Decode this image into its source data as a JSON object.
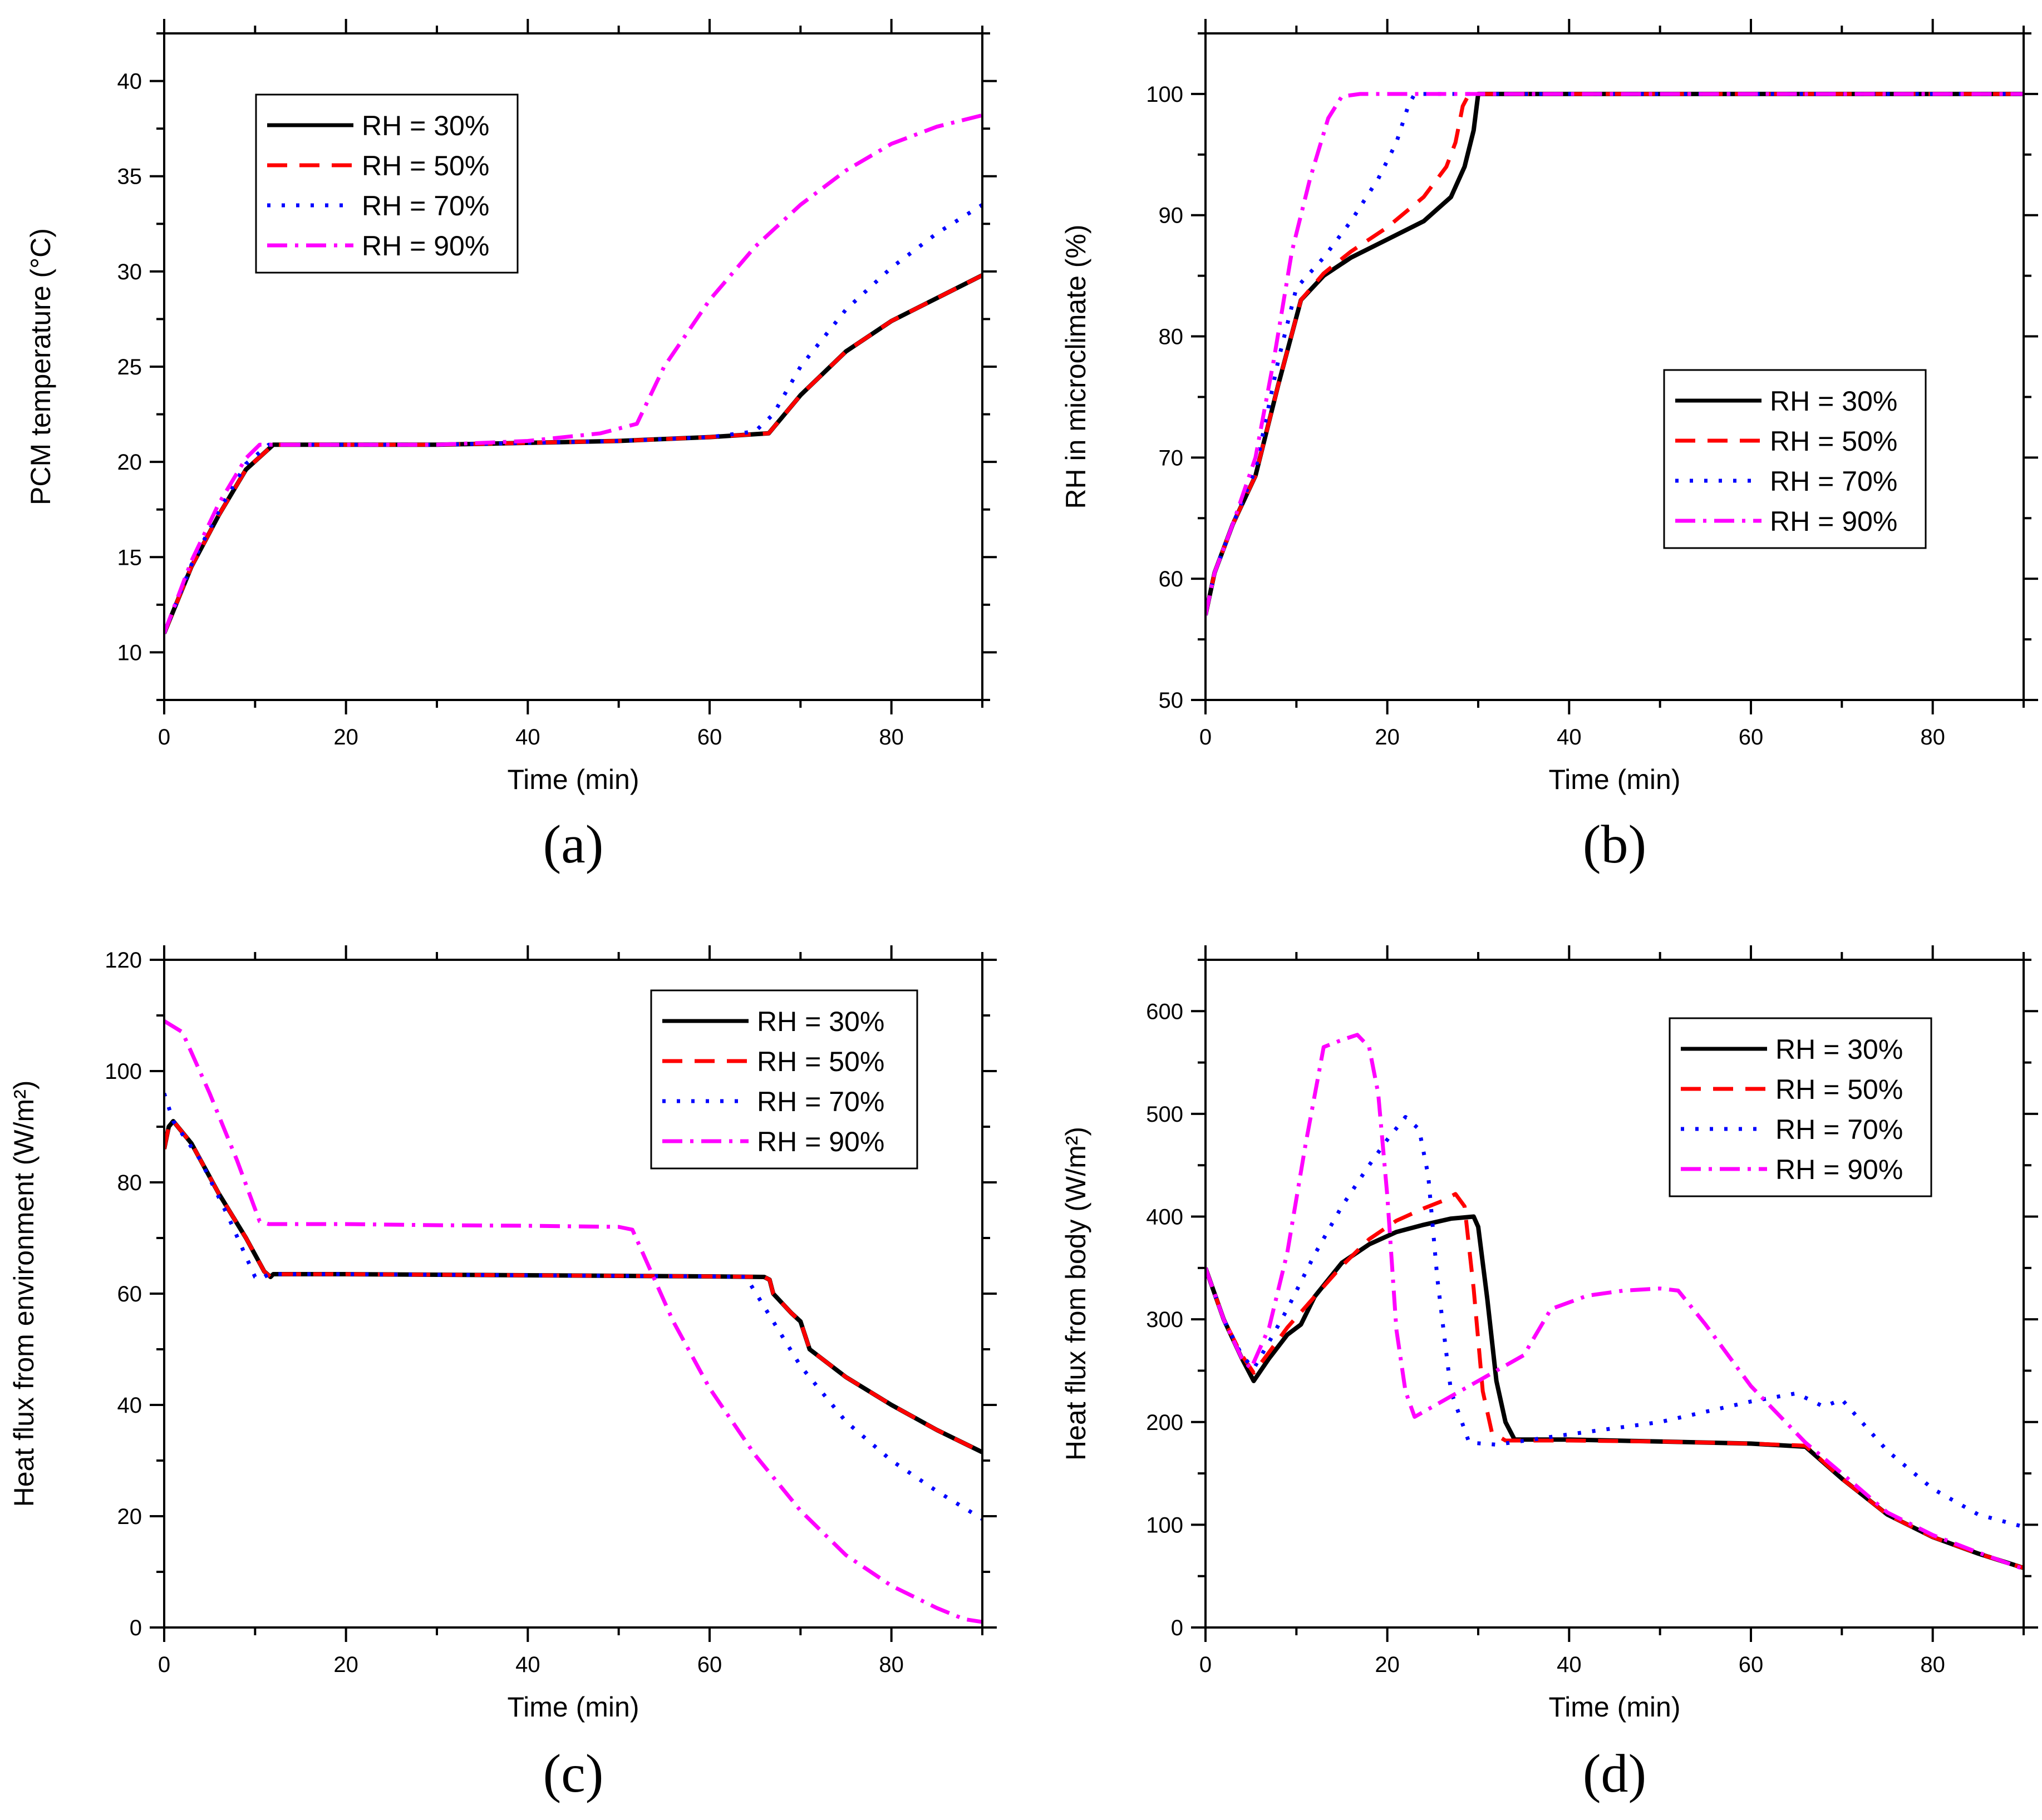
{
  "figure": {
    "series_style": {
      "RH = 30%": {
        "color": "#000000",
        "dash": "none"
      },
      "RH = 50%": {
        "color": "#ff0000",
        "dash": "36,22"
      },
      "RH = 70%": {
        "color": "#0000ff",
        "dash": "6,20"
      },
      "RH = 90%": {
        "color": "#ff00ff",
        "dash": "36,14,6,14"
      }
    }
  },
  "chart_data": [
    {
      "type": "line",
      "panel_label": "(a)",
      "xlabel": "Time (min)",
      "ylabel": "PCM temperature (°C)",
      "xlim": [
        0,
        90
      ],
      "ylim": [
        7.5,
        42.5
      ],
      "xticks": [
        0,
        20,
        40,
        60,
        80
      ],
      "yticks": [
        10,
        15,
        20,
        25,
        30,
        35,
        40
      ],
      "legend": {
        "position": "top-left",
        "entries": [
          "RH = 30%",
          "RH = 50%",
          "RH = 70%",
          "RH = 90%"
        ]
      },
      "series": [
        {
          "name": "RH = 30%",
          "x": [
            0,
            3,
            6,
            9,
            12,
            20,
            30,
            40,
            50,
            60,
            66.5,
            70,
            75,
            80,
            85,
            90
          ],
          "y": [
            11,
            14.5,
            17.2,
            19.6,
            20.9,
            20.9,
            20.9,
            21,
            21.1,
            21.3,
            21.5,
            23.5,
            25.8,
            27.4,
            28.6,
            29.8
          ]
        },
        {
          "name": "RH = 50%",
          "x": [
            0,
            3,
            6,
            9,
            12,
            20,
            30,
            40,
            50,
            60,
            66.5,
            70,
            75,
            80,
            85,
            90
          ],
          "y": [
            11,
            14.5,
            17.2,
            19.6,
            20.9,
            20.9,
            20.9,
            21,
            21.1,
            21.3,
            21.5,
            23.5,
            25.8,
            27.4,
            28.6,
            29.8
          ]
        },
        {
          "name": "RH = 70%",
          "x": [
            0,
            3,
            6,
            9,
            11.5,
            20,
            30,
            40,
            50,
            60,
            65,
            67,
            70,
            75,
            80,
            85,
            90
          ],
          "y": [
            11,
            14.6,
            17.4,
            19.9,
            20.9,
            20.9,
            20.9,
            21,
            21.1,
            21.3,
            21.6,
            22.5,
            25,
            28,
            30.2,
            32,
            33.5
          ]
        },
        {
          "name": "RH = 90%",
          "x": [
            0,
            3,
            6,
            9,
            10.5,
            20,
            30,
            40,
            48,
            52,
            55,
            60,
            65,
            70,
            75,
            80,
            85,
            90
          ],
          "y": [
            11,
            14.8,
            17.8,
            20.2,
            20.9,
            20.9,
            20.9,
            21.1,
            21.5,
            22,
            25,
            28.5,
            31.3,
            33.5,
            35.3,
            36.7,
            37.6,
            38.2
          ]
        }
      ]
    },
    {
      "type": "line",
      "panel_label": "(b)",
      "xlabel": "Time (min)",
      "ylabel": "RH in microclimate (%)",
      "xlim": [
        0,
        90
      ],
      "ylim": [
        50,
        105
      ],
      "xticks": [
        0,
        20,
        40,
        60,
        80
      ],
      "yticks": [
        50,
        60,
        70,
        80,
        90,
        100
      ],
      "legend": {
        "position": "center-right",
        "entries": [
          "RH = 30%",
          "RH = 50%",
          "RH = 70%",
          "RH = 90%"
        ]
      },
      "series": [
        {
          "name": "RH = 30%",
          "x": [
            0,
            1,
            3,
            5.5,
            8,
            10.5,
            13,
            16,
            20,
            24,
            27,
            28.5,
            29.5,
            30,
            40,
            50,
            60,
            70,
            80,
            90
          ],
          "y": [
            57,
            60.5,
            64.5,
            68.5,
            76,
            83,
            85,
            86.5,
            88,
            89.5,
            91.5,
            94,
            97,
            100,
            100,
            100,
            100,
            100,
            100,
            100
          ]
        },
        {
          "name": "RH = 50%",
          "x": [
            0,
            1,
            3,
            5.5,
            8,
            10.5,
            13,
            16,
            20,
            24,
            26.5,
            27.5,
            28.3,
            29,
            40,
            50,
            60,
            70,
            80,
            90
          ],
          "y": [
            57,
            60.5,
            64.5,
            68.5,
            76,
            83,
            85.2,
            87,
            89,
            91.5,
            94,
            96,
            99,
            100,
            100,
            100,
            100,
            100,
            100,
            100
          ]
        },
        {
          "name": "RH = 70%",
          "x": [
            0,
            1,
            3,
            5.5,
            8,
            10,
            13,
            16,
            19,
            21,
            22.3,
            23,
            30,
            40,
            50,
            60,
            70,
            80,
            90
          ],
          "y": [
            57,
            60.5,
            64.5,
            69,
            78,
            84,
            86.5,
            89.5,
            93,
            96,
            99,
            100,
            100,
            100,
            100,
            100,
            100,
            100,
            100
          ]
        },
        {
          "name": "RH = 90%",
          "x": [
            0,
            1,
            3,
            5.5,
            7.5,
            9.5,
            11.5,
            13.5,
            15,
            17,
            20,
            30,
            40,
            50,
            60,
            70,
            80,
            90
          ],
          "y": [
            57,
            60.5,
            64.5,
            70,
            78,
            87,
            93,
            98,
            99.8,
            100,
            100,
            100,
            100,
            100,
            100,
            100,
            100,
            100
          ]
        }
      ]
    },
    {
      "type": "line",
      "panel_label": "(c)",
      "xlabel": "Time (min)",
      "ylabel": "Heat flux from environment (W/m²)",
      "xlim": [
        0,
        90
      ],
      "ylim": [
        0,
        120
      ],
      "xticks": [
        0,
        20,
        40,
        60,
        80
      ],
      "yticks": [
        0,
        20,
        40,
        60,
        80,
        100,
        120
      ],
      "legend": {
        "position": "top-right",
        "entries": [
          "RH = 30%",
          "RH = 50%",
          "RH = 70%",
          "RH = 90%"
        ]
      },
      "series": [
        {
          "name": "RH = 30%",
          "x": [
            0,
            0.5,
            1,
            3,
            6,
            9,
            11,
            11.7,
            12,
            20,
            30,
            40,
            50,
            60,
            66,
            66.6,
            67,
            69,
            70,
            71,
            75,
            80,
            85,
            90
          ],
          "y": [
            86,
            90,
            91,
            87,
            78,
            70,
            64,
            63,
            63.5,
            63.5,
            63.4,
            63.3,
            63.2,
            63.1,
            63,
            62.5,
            60,
            56.5,
            55,
            50,
            45,
            40,
            35.5,
            31.5
          ]
        },
        {
          "name": "RH = 50%",
          "x": [
            0,
            0.5,
            1,
            3,
            6,
            9,
            11,
            11.7,
            12,
            20,
            30,
            40,
            50,
            60,
            66,
            66.6,
            67,
            69,
            70,
            71,
            75,
            80,
            85,
            90
          ],
          "y": [
            86,
            90,
            91,
            87,
            78,
            70,
            64,
            63,
            63.5,
            63.5,
            63.4,
            63.3,
            63.2,
            63.1,
            63,
            62.5,
            60,
            56.5,
            55,
            50,
            45,
            40,
            35.5,
            31.5
          ]
        },
        {
          "name": "RH = 70%",
          "x": [
            0,
            1,
            4,
            7,
            10,
            10.5,
            11.5,
            20,
            30,
            40,
            50,
            60,
            64,
            67,
            70,
            75,
            80,
            85,
            90
          ],
          "y": [
            96,
            91,
            84,
            74,
            63,
            62.5,
            63.5,
            63.5,
            63.4,
            63.3,
            63.2,
            63.1,
            63,
            55,
            47,
            37,
            30,
            24.5,
            19.5
          ]
        },
        {
          "name": "RH = 90%",
          "x": [
            0,
            2,
            5,
            8,
            10.5,
            11.5,
            20,
            30,
            40,
            50,
            51.5,
            53,
            56,
            60,
            65,
            70,
            75,
            80,
            85,
            88,
            90
          ],
          "y": [
            109,
            107,
            96,
            84,
            73,
            72.5,
            72.5,
            72.3,
            72.2,
            72,
            71.5,
            66,
            55,
            43,
            31,
            21,
            13,
            7.5,
            3.5,
            1.5,
            1
          ]
        }
      ]
    },
    {
      "type": "line",
      "panel_label": "(d)",
      "xlabel": "Time (min)",
      "ylabel": "Heat flux from body (W/m²)",
      "xlim": [
        0,
        90
      ],
      "ylim": [
        0,
        650
      ],
      "xticks": [
        0,
        20,
        40,
        60,
        80
      ],
      "yticks": [
        0,
        100,
        200,
        300,
        400,
        500,
        600
      ],
      "legend": {
        "position": "top-right",
        "entries": [
          "RH = 30%",
          "RH = 50%",
          "RH = 70%",
          "RH = 90%"
        ]
      },
      "series": [
        {
          "name": "RH = 30%",
          "x": [
            0,
            2,
            4,
            5.3,
            7,
            9,
            10.5,
            12,
            15,
            18,
            21,
            24,
            27,
            29.5,
            30,
            31,
            32,
            33,
            34,
            40,
            50,
            60,
            66,
            70,
            75,
            80,
            85,
            90
          ],
          "y": [
            350,
            300,
            262,
            240,
            262,
            285,
            295,
            322,
            355,
            373,
            385,
            392,
            398,
            400,
            390,
            320,
            240,
            200,
            183,
            183,
            181,
            179,
            176,
            145,
            110,
            88,
            72,
            58
          ]
        },
        {
          "name": "RH = 50%",
          "x": [
            0,
            2,
            4,
            5.3,
            7,
            9,
            12,
            15,
            18,
            21,
            24,
            26,
            27.5,
            28.5,
            29.5,
            30.5,
            31.5,
            33,
            40,
            50,
            60,
            66,
            70,
            75,
            80,
            85,
            90
          ],
          "y": [
            350,
            300,
            265,
            248,
            268,
            292,
            322,
            352,
            378,
            396,
            408,
            415,
            422,
            410,
            330,
            230,
            190,
            182,
            182,
            181,
            179,
            177,
            145,
            110,
            88,
            72,
            58
          ]
        },
        {
          "name": "RH = 70%",
          "x": [
            0,
            2,
            4,
            5.3,
            7,
            9,
            12,
            15,
            18,
            20,
            22,
            23.5,
            24.5,
            25.5,
            27,
            29,
            32,
            40,
            50,
            60,
            65,
            68,
            70,
            75,
            80,
            85,
            90
          ],
          "y": [
            350,
            300,
            265,
            252,
            278,
            310,
            363,
            410,
            450,
            475,
            497,
            485,
            440,
            340,
            230,
            180,
            178,
            188,
            200,
            220,
            228,
            215,
            222,
            172,
            135,
            110,
            98
          ]
        },
        {
          "name": "RH = 90%",
          "x": [
            0,
            2,
            4,
            5,
            7,
            9,
            11,
            13,
            15,
            16.7,
            18,
            19,
            20,
            21,
            22,
            23,
            25,
            30,
            35,
            38,
            42,
            46,
            50,
            52,
            55,
            60,
            66,
            70,
            75,
            80,
            85,
            90
          ],
          "y": [
            350,
            300,
            262,
            252,
            292,
            365,
            470,
            565,
            572,
            577,
            565,
            520,
            420,
            290,
            230,
            205,
            215,
            240,
            265,
            310,
            323,
            328,
            330,
            328,
            295,
            235,
            180,
            150,
            112,
            90,
            73,
            57
          ]
        }
      ]
    }
  ]
}
